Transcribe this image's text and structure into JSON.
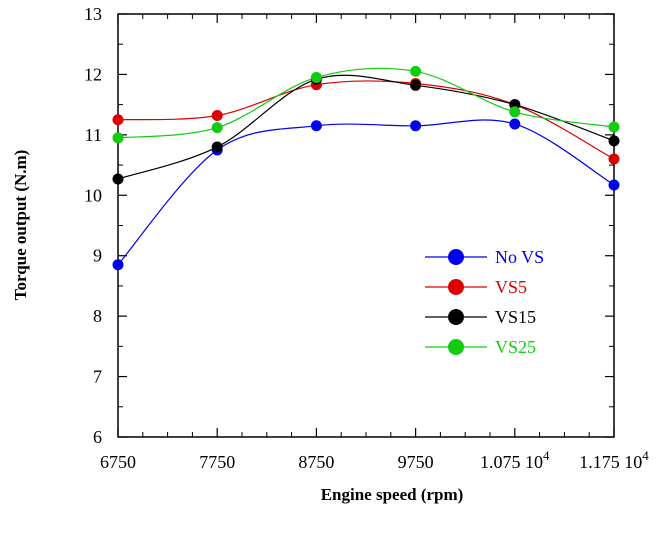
{
  "chart_data": {
    "type": "line",
    "xlabel": "Engine speed (rpm)",
    "ylabel": "Torque output (N.m)",
    "x": [
      6750,
      7750,
      8750,
      9750,
      10750,
      11750
    ],
    "x_tick_values": [
      6750,
      7750,
      8750,
      9750,
      10750,
      11750
    ],
    "x_tick_labels": [
      {
        "main": "6750",
        "sup": ""
      },
      {
        "main": "7750",
        "sup": ""
      },
      {
        "main": "8750",
        "sup": ""
      },
      {
        "main": "9750",
        "sup": ""
      },
      {
        "main": "1.075 10",
        "sup": "4"
      },
      {
        "main": "1.175 10",
        "sup": "4"
      }
    ],
    "xlim": [
      6750,
      11750
    ],
    "ylim": [
      6,
      13
    ],
    "y_ticks": [
      6,
      7,
      8,
      9,
      10,
      11,
      12,
      13
    ],
    "grid": false,
    "legend_position": "lower-right",
    "series": [
      {
        "name": "No VS",
        "color": "#0000ee",
        "x": [
          6750,
          7750,
          8750,
          9750,
          10750,
          11750
        ],
        "y": [
          8.85,
          10.75,
          11.15,
          11.15,
          11.18,
          10.17
        ]
      },
      {
        "name": "VS5",
        "color": "#dd0000",
        "x": [
          6750,
          7750,
          8750,
          9750,
          10750,
          11750
        ],
        "y": [
          11.25,
          11.32,
          11.83,
          11.85,
          11.5,
          10.6
        ]
      },
      {
        "name": "VS15",
        "color": "#000000",
        "x": [
          6750,
          7750,
          8750,
          9750,
          10750,
          11750
        ],
        "y": [
          10.27,
          10.8,
          11.92,
          11.82,
          11.5,
          10.9
        ]
      },
      {
        "name": "VS25",
        "color": "#11cc11",
        "x": [
          6750,
          7750,
          8750,
          9750,
          10750,
          11750
        ],
        "y": [
          10.95,
          11.12,
          11.95,
          12.05,
          11.38,
          11.13
        ]
      }
    ]
  }
}
